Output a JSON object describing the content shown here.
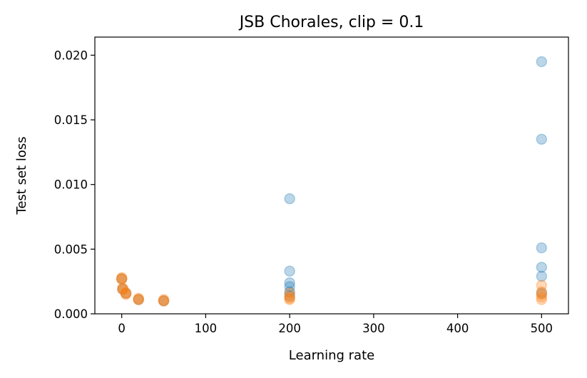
{
  "chart_data": {
    "type": "scatter",
    "title": "JSB Chorales, clip = 0.1",
    "xlabel": "Learning rate",
    "ylabel": "Test set loss",
    "xlim": [
      -32,
      532
    ],
    "ylim": [
      0,
      0.0214
    ],
    "x_ticks": [
      0,
      100,
      200,
      300,
      400,
      500
    ],
    "x_tick_labels": [
      "0",
      "100",
      "200",
      "300",
      "400",
      "500"
    ],
    "y_ticks": [
      0,
      0.005,
      0.01,
      0.015,
      0.02
    ],
    "y_tick_labels": [
      "0.000",
      "0.005",
      "0.010",
      "0.015",
      "0.020"
    ],
    "grid": false,
    "series": [
      {
        "color": "#1f77b4",
        "opacity": 0.3,
        "points": [
          {
            "x": 0,
            "y": 0.0027
          },
          {
            "x": 1,
            "y": 0.0019
          },
          {
            "x": 5,
            "y": 0.0016
          },
          {
            "x": 20,
            "y": 0.0011
          },
          {
            "x": 50,
            "y": 0.001
          },
          {
            "x": 200,
            "y": 0.0089
          },
          {
            "x": 200,
            "y": 0.0033
          },
          {
            "x": 200,
            "y": 0.0024
          },
          {
            "x": 200,
            "y": 0.0021
          },
          {
            "x": 200,
            "y": 0.0017
          },
          {
            "x": 200,
            "y": 0.0014
          },
          {
            "x": 500,
            "y": 0.0195
          },
          {
            "x": 500,
            "y": 0.0135
          },
          {
            "x": 500,
            "y": 0.0051
          },
          {
            "x": 500,
            "y": 0.0036
          },
          {
            "x": 500,
            "y": 0.0029
          },
          {
            "x": 500,
            "y": 0.0016
          }
        ]
      },
      {
        "color": "#ff7f0e",
        "opacity": 0.3,
        "points": [
          {
            "x": 0,
            "y": 0.0028
          },
          {
            "x": 0,
            "y": 0.0027
          },
          {
            "x": 0,
            "y": 0.0027
          },
          {
            "x": 1,
            "y": 0.002
          },
          {
            "x": 1,
            "y": 0.0019
          },
          {
            "x": 2,
            "y": 0.0019
          },
          {
            "x": 5,
            "y": 0.0016
          },
          {
            "x": 5,
            "y": 0.0015
          },
          {
            "x": 5,
            "y": 0.0016
          },
          {
            "x": 20,
            "y": 0.0011
          },
          {
            "x": 20,
            "y": 0.0011
          },
          {
            "x": 20,
            "y": 0.0012
          },
          {
            "x": 50,
            "y": 0.001
          },
          {
            "x": 50,
            "y": 0.001
          },
          {
            "x": 50,
            "y": 0.0011
          },
          {
            "x": 200,
            "y": 0.0016
          },
          {
            "x": 200,
            "y": 0.0013
          },
          {
            "x": 200,
            "y": 0.0012
          },
          {
            "x": 200,
            "y": 0.0011
          },
          {
            "x": 500,
            "y": 0.0022
          },
          {
            "x": 500,
            "y": 0.0017
          },
          {
            "x": 500,
            "y": 0.0015
          },
          {
            "x": 500,
            "y": 0.0013
          },
          {
            "x": 500,
            "y": 0.0011
          }
        ]
      }
    ]
  }
}
